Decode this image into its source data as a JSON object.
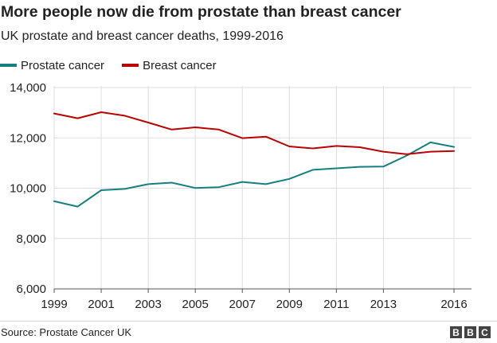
{
  "header": {
    "title": "More people now die from prostate than breast cancer",
    "subtitle": "UK prostate and breast cancer deaths, 1999-2016"
  },
  "footer": {
    "source": "Source: Prostate Cancer UK",
    "logo_letters": [
      "B",
      "B",
      "C"
    ]
  },
  "colors": {
    "prostate": "#16807f",
    "breast": "#bb0000",
    "grid": "#dddddd",
    "axis": "#555555",
    "text": "#222222"
  },
  "chart_data": {
    "type": "line",
    "title": "More people now die from prostate than breast cancer",
    "subtitle": "UK prostate and breast cancer deaths, 1999-2016",
    "xlabel": "",
    "ylabel": "",
    "x": [
      1999,
      2000,
      2001,
      2002,
      2003,
      2004,
      2005,
      2006,
      2007,
      2008,
      2009,
      2010,
      2011,
      2012,
      2013,
      2014,
      2015,
      2016
    ],
    "series": [
      {
        "name": "Prostate cancer",
        "color": "#16807f",
        "values": [
          9480,
          9270,
          9920,
          9970,
          10160,
          10220,
          10010,
          10040,
          10250,
          10160,
          10370,
          10730,
          10790,
          10850,
          10860,
          11300,
          11820,
          11640
        ]
      },
      {
        "name": "Breast cancer",
        "color": "#bb0000",
        "values": [
          12970,
          12780,
          13020,
          12880,
          12610,
          12330,
          12420,
          12330,
          11990,
          12050,
          11660,
          11580,
          11680,
          11630,
          11450,
          11350,
          11450,
          11480
        ]
      }
    ],
    "xlim": [
      1999,
      2016
    ],
    "ylim": [
      6000,
      14000
    ],
    "xticks": [
      "1999",
      "2001",
      "2003",
      "2005",
      "2007",
      "2009",
      "2011",
      "2013",
      "2016"
    ],
    "yticks": [
      "6,000",
      "8,000",
      "10,000",
      "12,000",
      "14,000"
    ],
    "grid": true,
    "legend_position": "top-left"
  }
}
